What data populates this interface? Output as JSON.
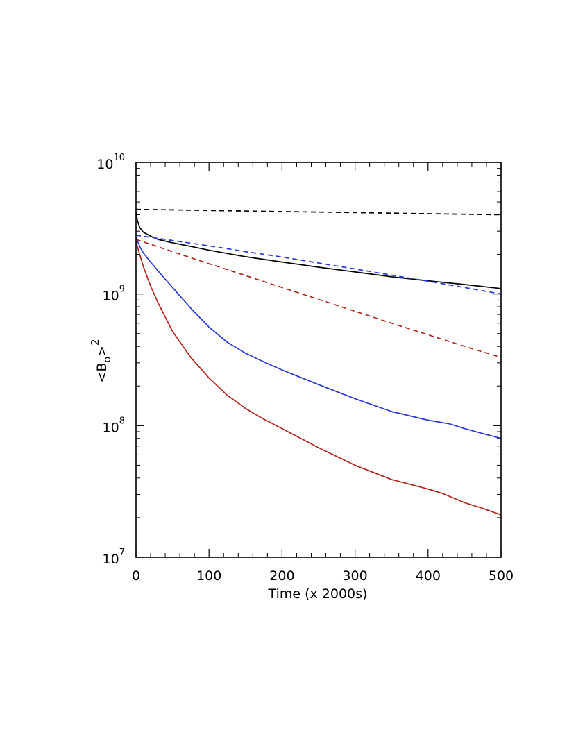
{
  "chart_data": {
    "type": "line",
    "xlabel": "Time (x 2000s)",
    "ylabel": {
      "open": "<B",
      "sub": "o",
      "close": ">",
      "sup": "2"
    },
    "xlim": [
      0,
      500
    ],
    "ylim": [
      10000000.0,
      10000000000.0
    ],
    "y_scale": "log",
    "x_ticks": [
      {
        "value": 0,
        "label": "0"
      },
      {
        "value": 100,
        "label": "100"
      },
      {
        "value": 200,
        "label": "200"
      },
      {
        "value": 300,
        "label": "300"
      },
      {
        "value": 400,
        "label": "400"
      },
      {
        "value": 500,
        "label": "500"
      }
    ],
    "y_ticks": [
      {
        "value": 10000000.0,
        "base": "10",
        "exp": "7"
      },
      {
        "value": 100000000.0,
        "base": "10",
        "exp": "8"
      },
      {
        "value": 1000000000.0,
        "base": "10",
        "exp": "9"
      },
      {
        "value": 10000000000.0,
        "base": "10",
        "exp": "10"
      }
    ],
    "grid": false,
    "series": [
      {
        "color": "#000000",
        "dash": true,
        "x": [
          0,
          100,
          200,
          300,
          400,
          500
        ],
        "y": [
          4400000000.0,
          4310000000.0,
          4230000000.0,
          4150000000.0,
          4070000000.0,
          4000000000.0
        ]
      },
      {
        "color": "#000000",
        "dash": false,
        "x": [
          0,
          2,
          5,
          10,
          20,
          30,
          50,
          75,
          100,
          150,
          200,
          250,
          300,
          350,
          400,
          450,
          500
        ],
        "y": [
          4200000000.0,
          3600000000.0,
          3200000000.0,
          2950000000.0,
          2750000000.0,
          2600000000.0,
          2450000000.0,
          2300000000.0,
          2150000000.0,
          1920000000.0,
          1750000000.0,
          1600000000.0,
          1470000000.0,
          1350000000.0,
          1260000000.0,
          1180000000.0,
          1100000000.0
        ]
      },
      {
        "color": "#2936d9",
        "dash": true,
        "x": [
          0,
          50,
          100,
          150,
          200,
          250,
          300,
          350,
          400,
          450,
          500
        ],
        "y": [
          2800000000.0,
          2550000000.0,
          2320000000.0,
          2100000000.0,
          1910000000.0,
          1720000000.0,
          1550000000.0,
          1390000000.0,
          1250000000.0,
          1120000000.0,
          1000000000.0
        ]
      },
      {
        "color": "#b0251c",
        "dash": true,
        "x": [
          0,
          50,
          100,
          150,
          200,
          250,
          300,
          350,
          400,
          450,
          500
        ],
        "y": [
          2600000000.0,
          2100000000.0,
          1700000000.0,
          1380000000.0,
          1120000000.0,
          910000000.0,
          740000000.0,
          600000000.0,
          490000000.0,
          400000000.0,
          330000000.0
        ]
      },
      {
        "color": "#2936d9",
        "dash": false,
        "x": [
          0,
          5,
          10,
          20,
          30,
          50,
          75,
          100,
          125,
          150,
          175,
          200,
          250,
          300,
          350,
          400,
          430,
          450,
          475,
          500
        ],
        "y": [
          2700000000.0,
          2300000000.0,
          2050000000.0,
          1750000000.0,
          1500000000.0,
          1120000000.0,
          780000000.0,
          560000000.0,
          430000000.0,
          355000000.0,
          305000000.0,
          265000000.0,
          205000000.0,
          160000000.0,
          128000000.0,
          110000000.0,
          103000000.0,
          95000000.0,
          87000000.0,
          80000000.0
        ]
      },
      {
        "color": "#b0251c",
        "dash": false,
        "x": [
          0,
          5,
          10,
          20,
          30,
          50,
          75,
          100,
          125,
          150,
          175,
          200,
          250,
          300,
          350,
          400,
          420,
          450,
          475,
          500
        ],
        "y": [
          2500000000.0,
          2000000000.0,
          1620000000.0,
          1150000000.0,
          860000000.0,
          520000000.0,
          330000000.0,
          230000000.0,
          170000000.0,
          135000000.0,
          112000000.0,
          95000000.0,
          68000000.0,
          50000000.0,
          39000000.0,
          33000000.0,
          30500000.0,
          26000000.0,
          23500000.0,
          21000000.0
        ]
      }
    ]
  }
}
